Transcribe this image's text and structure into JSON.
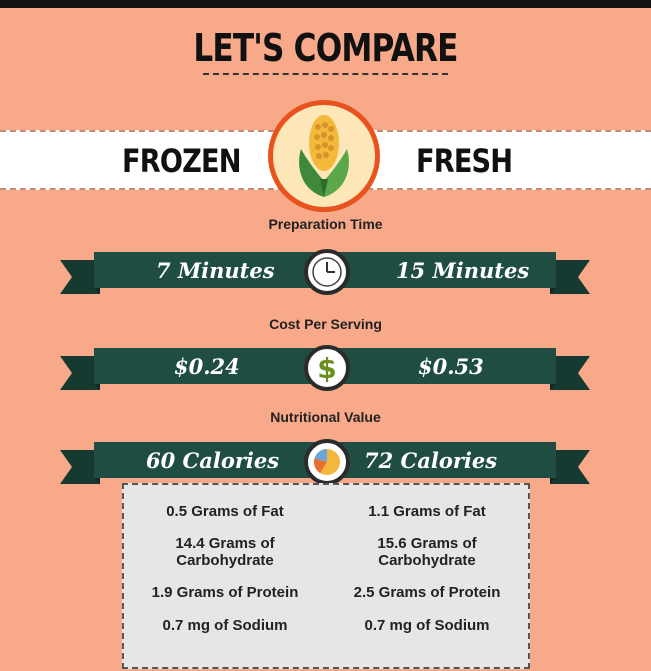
{
  "title": "LET'S COMPARE",
  "left_label": "FROZEN",
  "right_label": "FRESH",
  "center_icon": "corn-icon",
  "sections": [
    {
      "label": "Preparation Time",
      "left": "7 Minutes",
      "right": "15 Minutes",
      "icon": "clock-icon"
    },
    {
      "label": "Cost Per Serving",
      "left": "$0.24",
      "right": "$0.53",
      "icon": "dollar-icon"
    },
    {
      "label": "Nutritional Value",
      "left": "60 Calories",
      "right": "72 Calories",
      "icon": "pie-chart-icon"
    }
  ],
  "nutrition": {
    "left": [
      "0.5 Grams of Fat",
      "14.4 Grams of Carbohydrate",
      "1.9 Grams of Protein",
      "0.7 mg of Sodium"
    ],
    "right": [
      "1.1 Grams of Fat",
      "15.6 Grams of Carbohydrate",
      "2.5 Grams of Protein",
      "0.7 mg of Sodium"
    ]
  },
  "colors": {
    "background": "#f7a98a",
    "ribbon": "#1f4d43",
    "ribbon_dark": "#163a32",
    "badge_border": "#e8521d",
    "badge_fill": "#fde6b8",
    "dollar": "#6a8f1f"
  }
}
